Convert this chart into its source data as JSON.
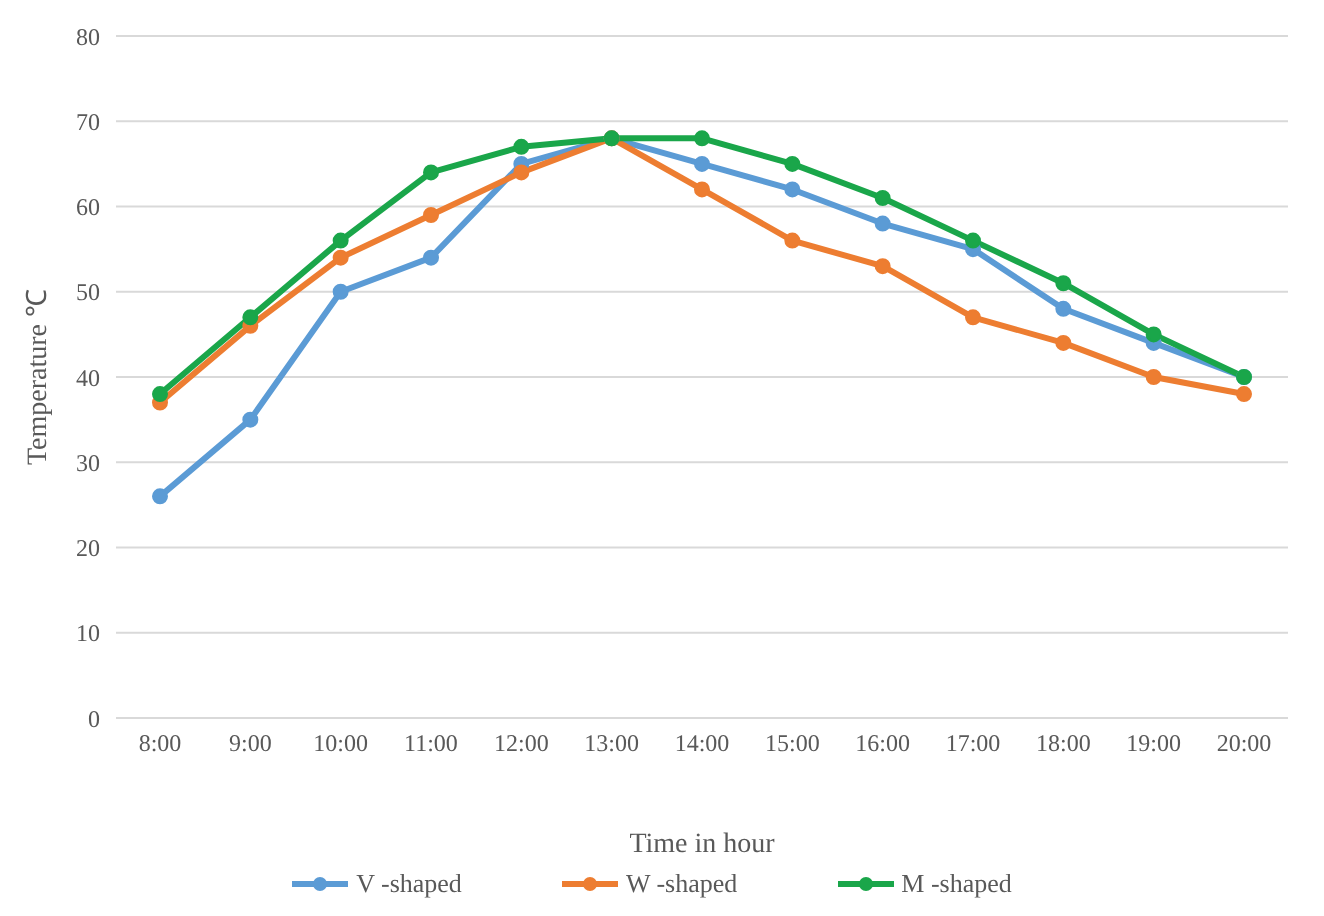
{
  "chart_data": {
    "type": "line",
    "xlabel": "Time in hour",
    "ylabel": "Temperature ℃",
    "categories": [
      "8:00",
      "9:00",
      "10:00",
      "11:00",
      "12:00",
      "13:00",
      "14:00",
      "15:00",
      "16:00",
      "17:00",
      "18:00",
      "19:00",
      "20:00"
    ],
    "series": [
      {
        "name": "V -shaped",
        "color": "#5b9bd5",
        "values": [
          26,
          35,
          50,
          54,
          65,
          68,
          65,
          62,
          58,
          55,
          48,
          44,
          40
        ]
      },
      {
        "name": "W -shaped",
        "color": "#ed7d31",
        "values": [
          37,
          46,
          54,
          59,
          64,
          68,
          62,
          56,
          53,
          47,
          44,
          40,
          38
        ]
      },
      {
        "name": "M -shaped",
        "color": "#1aa64a",
        "values": [
          38,
          47,
          56,
          64,
          67,
          68,
          68,
          65,
          61,
          56,
          51,
          45,
          40
        ]
      }
    ],
    "ylim": [
      0,
      80
    ],
    "yticks": [
      0,
      10,
      20,
      30,
      40,
      50,
      60,
      70,
      80
    ],
    "grid": "y",
    "legend": "bottom",
    "marker": "circle",
    "line_style": "solid"
  }
}
